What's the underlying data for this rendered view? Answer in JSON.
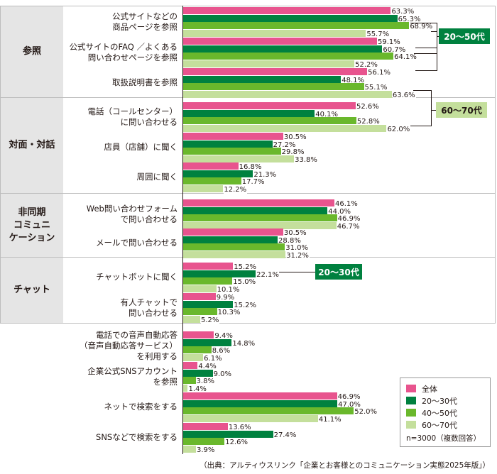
{
  "chart_data": {
    "type": "bar",
    "orientation": "horizontal",
    "series": [
      {
        "name": "全体",
        "color": "#e8548e"
      },
      {
        "name": "20～30代",
        "color": "#00813f"
      },
      {
        "name": "40～50代",
        "color": "#6ab82c"
      },
      {
        "name": "60～70代",
        "color": "#c4df9c"
      }
    ],
    "groups": [
      {
        "category": "参照",
        "items": [
          {
            "label": "公式サイトなどの\n商品ページを参照",
            "values": [
              63.3,
              65.3,
              68.9,
              55.7
            ],
            "value_labels": [
              "63.3%",
              "65.3%",
              "68.9%",
              "55.7%"
            ]
          },
          {
            "label": "公式サイトのFAQ ／よくある\n問い合わせページを参照",
            "values": [
              59.1,
              60.7,
              64.1,
              52.2
            ],
            "value_labels": [
              "59.1%",
              "60.7%",
              "64.1%",
              "52.2%"
            ]
          },
          {
            "label": "取扱説明書を参照",
            "values": [
              56.1,
              48.1,
              55.1,
              63.6
            ],
            "value_labels": [
              "56.1%",
              "48.1%",
              "55.1%",
              "63.6%"
            ]
          }
        ]
      },
      {
        "category": "対面・対話",
        "items": [
          {
            "label": "電話（コールセンター）\nに問い合わせる",
            "values": [
              52.6,
              40.1,
              52.8,
              62.0
            ],
            "value_labels": [
              "52.6%",
              "40.1%",
              "52.8%",
              "62.0%"
            ]
          },
          {
            "label": "店員（店舗）に聞く",
            "values": [
              30.5,
              27.2,
              29.8,
              33.8
            ],
            "value_labels": [
              "30.5%",
              "27.2%",
              "29.8%",
              "33.8%"
            ]
          },
          {
            "label": "周囲に聞く",
            "values": [
              16.8,
              21.3,
              17.7,
              12.2
            ],
            "value_labels": [
              "16.8%",
              "21.3%",
              "17.7%",
              "12.2%"
            ]
          }
        ]
      },
      {
        "category": "非同期\nコミュニ\nケーション",
        "items": [
          {
            "label": "Web問い合わせフォーム\nで問い合わせる",
            "values": [
              46.1,
              44.0,
              46.9,
              46.7
            ],
            "value_labels": [
              "46.1%",
              "44.0%",
              "46.9%",
              "46.7%"
            ]
          },
          {
            "label": "メールで問い合わせる",
            "values": [
              30.5,
              28.8,
              31.0,
              31.2
            ],
            "value_labels": [
              "30.5%",
              "28.8%",
              "31.0%",
              "31.2%"
            ]
          }
        ]
      },
      {
        "category": "チャット",
        "items": [
          {
            "label": "チャットボットに聞く",
            "values": [
              15.2,
              22.1,
              15.0,
              10.1
            ],
            "value_labels": [
              "15.2%",
              "22.1%",
              "15.0%",
              "10.1%"
            ]
          },
          {
            "label": "有人チャットで\n問い合わせる",
            "values": [
              9.9,
              15.2,
              10.3,
              5.2
            ],
            "value_labels": [
              "9.9%",
              "15.2%",
              "10.3%",
              "5.2%"
            ]
          }
        ]
      },
      {
        "category": "",
        "items": [
          {
            "label": "電話での音声自動応答\n（音声自動応答サービス）\nを利用する",
            "values": [
              9.4,
              14.8,
              8.6,
              6.1
            ],
            "value_labels": [
              "9.4%",
              "14.8%",
              "8.6%",
              "6.1%"
            ]
          },
          {
            "label": "企業公式SNSアカウント\nを参照",
            "values": [
              4.4,
              9.0,
              3.8,
              1.4
            ],
            "value_labels": [
              "4.4%",
              "9.0%",
              "3.8%",
              "1.4%"
            ]
          },
          {
            "label": "ネットで検索をする",
            "values": [
              46.9,
              47.0,
              52.0,
              41.1
            ],
            "value_labels": [
              "46.9%",
              "47.0%",
              "52.0%",
              "41.1%"
            ]
          },
          {
            "label": "SNSなどで検索をする",
            "values": [
              13.6,
              27.4,
              12.6,
              3.9
            ],
            "value_labels": [
              "13.6%",
              "27.4%",
              "12.6%",
              "3.9%"
            ]
          }
        ]
      }
    ],
    "annotations": [
      {
        "text": "20～50代",
        "style": "dark",
        "color": "#00813f"
      },
      {
        "text": "60～70代",
        "style": "light",
        "color": "#c4df9c"
      },
      {
        "text": "20～30代",
        "style": "dark",
        "color": "#00813f"
      }
    ],
    "legend_position": "bottom-right",
    "note": "n=3000（複数回答）",
    "source": "（出典：アルティウスリンク「企業とお客様とのコミュニケーション実態2025年版」）",
    "grid": false
  }
}
